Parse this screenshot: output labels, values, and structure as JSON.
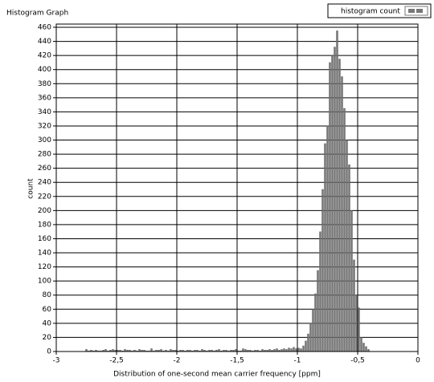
{
  "chart_data": {
    "type": "histogram",
    "title": "Histogram Graph",
    "x_label": "Distribution of one-second mean carrier frequency [ppm]",
    "y_label": "count",
    "legend": {
      "label": "histogram count",
      "position": "top-right"
    },
    "series": [
      {
        "name": "histogram count",
        "color": "#777777",
        "bins": [
          -2.76,
          -2.74,
          -2.72,
          -2.7,
          -2.68,
          -2.66,
          -2.64,
          -2.62,
          -2.6,
          -2.58,
          -2.56,
          -2.54,
          -2.52,
          -2.5,
          -2.48,
          -2.46,
          -2.44,
          -2.42,
          -2.4,
          -2.38,
          -2.36,
          -2.34,
          -2.32,
          -2.3,
          -2.28,
          -2.26,
          -2.24,
          -2.22,
          -2.2,
          -2.18,
          -2.16,
          -2.14,
          -2.12,
          -2.1,
          -2.08,
          -2.06,
          -2.04,
          -2.02,
          -2,
          -1.98,
          -1.96,
          -1.94,
          -1.92,
          -1.9,
          -1.88,
          -1.86,
          -1.84,
          -1.82,
          -1.8,
          -1.78,
          -1.76,
          -1.74,
          -1.72,
          -1.7,
          -1.68,
          -1.66,
          -1.64,
          -1.62,
          -1.6,
          -1.58,
          -1.56,
          -1.54,
          -1.52,
          -1.5,
          -1.48,
          -1.46,
          -1.44,
          -1.42,
          -1.4,
          -1.38,
          -1.36,
          -1.34,
          -1.32,
          -1.3,
          -1.28,
          -1.26,
          -1.24,
          -1.22,
          -1.2,
          -1.18,
          -1.16,
          -1.14,
          -1.12,
          -1.1,
          -1.08,
          -1.06,
          -1.04,
          -1.02,
          -1,
          -0.98,
          -0.96,
          -0.94,
          -0.92,
          -0.9,
          -0.88,
          -0.86,
          -0.84,
          -0.82,
          -0.8,
          -0.78,
          -0.76,
          -0.74,
          -0.72,
          -0.7,
          -0.68,
          -0.66,
          -0.64,
          -0.62,
          -0.6,
          -0.58,
          -0.56,
          -0.54,
          -0.52,
          -0.5,
          -0.48,
          -0.46,
          -0.44,
          -0.42,
          -0.4
        ],
        "values": [
          3,
          1,
          2,
          1,
          2,
          1,
          1,
          2,
          3,
          1,
          2,
          3,
          2,
          2,
          2,
          1,
          3,
          2,
          2,
          1,
          2,
          1,
          3,
          2,
          2,
          1,
          1,
          4,
          1,
          2,
          2,
          3,
          1,
          2,
          1,
          3,
          2,
          2,
          1,
          2,
          2,
          1,
          2,
          2,
          1,
          2,
          2,
          1,
          3,
          2,
          1,
          2,
          2,
          1,
          2,
          3,
          1,
          2,
          2,
          1,
          2,
          2,
          3,
          1,
          1,
          4,
          3,
          2,
          2,
          1,
          2,
          2,
          1,
          3,
          2,
          2,
          3,
          2,
          3,
          4,
          2,
          3,
          4,
          3,
          5,
          4,
          6,
          4,
          5,
          4,
          8,
          15,
          25,
          40,
          60,
          82,
          115,
          170,
          230,
          295,
          320,
          410,
          420,
          432,
          455,
          415,
          390,
          345,
          300,
          265,
          200,
          130,
          80,
          62,
          20,
          12,
          7,
          3
        ]
      }
    ],
    "xlim": [
      -3,
      0
    ],
    "xticks": [
      -3,
      {
        "value": -2.5,
        "label": "-2,5"
      },
      -2,
      {
        "value": -1.5,
        "label": "-1,5"
      },
      -1,
      {
        "value": -0.5,
        "label": "-0,5"
      },
      0
    ],
    "ylim": [
      0,
      460
    ],
    "yticks": [
      0,
      20,
      40,
      60,
      80,
      100,
      120,
      140,
      160,
      180,
      200,
      220,
      240,
      260,
      280,
      300,
      320,
      340,
      360,
      380,
      400,
      420,
      440,
      460
    ],
    "grid": true
  }
}
